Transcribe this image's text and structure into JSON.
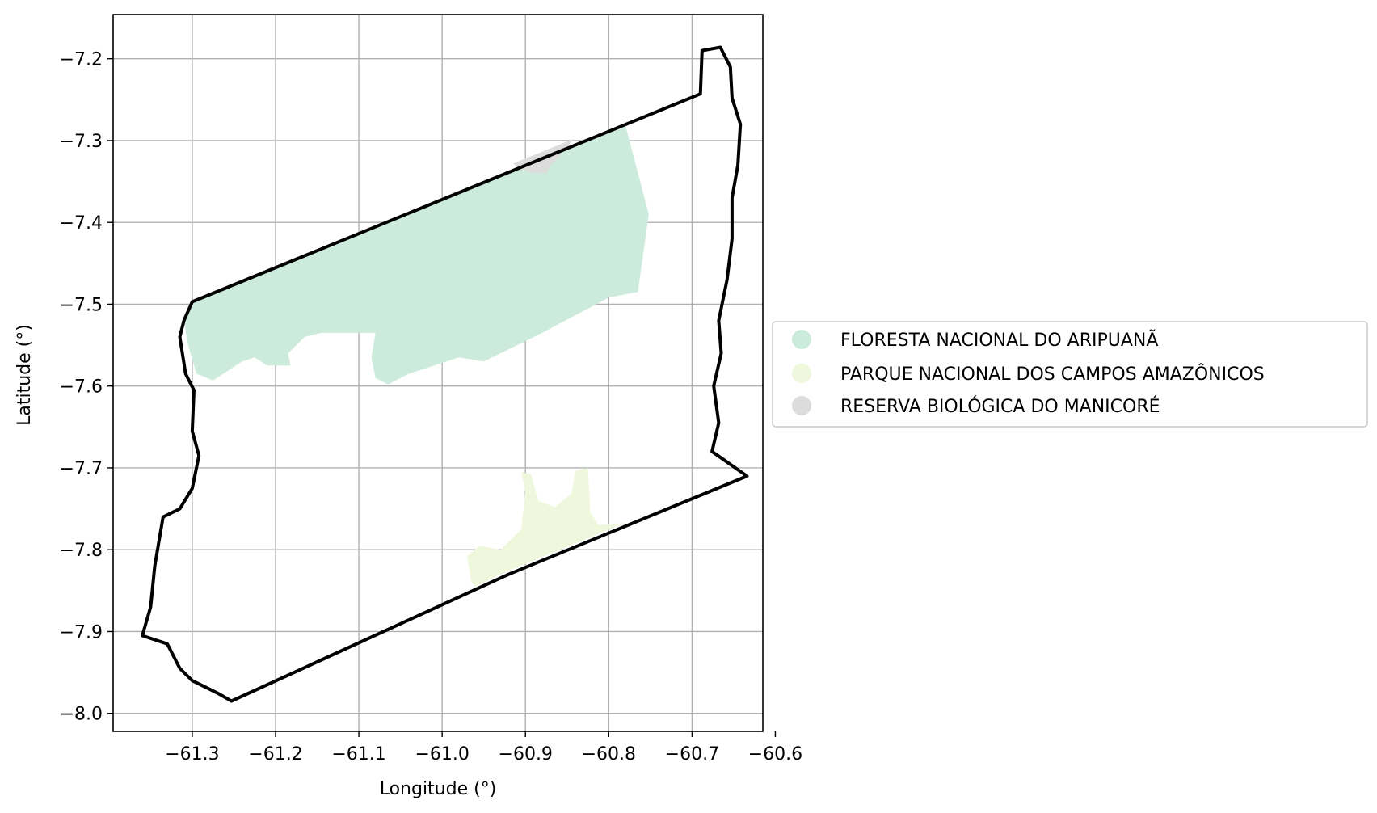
{
  "chart_data": {
    "type": "map",
    "xlabel": "Longitude (°)",
    "ylabel": "Latitude (°)",
    "xlim": [
      -61.395,
      -60.615
    ],
    "ylim": [
      -8.022,
      -7.146
    ],
    "xticks": [
      -61.3,
      -61.2,
      -61.1,
      -61.0,
      -60.9,
      -60.8,
      -60.7,
      -60.6
    ],
    "xtick_labels": [
      "−61.3",
      "−61.2",
      "−61.1",
      "−61.0",
      "−60.9",
      "−60.8",
      "−60.7",
      "−60.6"
    ],
    "yticks": [
      -7.2,
      -7.3,
      -7.4,
      -7.5,
      -7.6,
      -7.7,
      -7.8,
      -7.9,
      -8.0
    ],
    "ytick_labels": [
      "−7.2",
      "−7.3",
      "−7.4",
      "−7.5",
      "−7.6",
      "−7.7",
      "−7.8",
      "−7.9",
      "−8.0"
    ],
    "grid": true,
    "legend_position": "right",
    "boundary": {
      "stroke": "#000000",
      "coordinates": [
        [
          -61.3,
          -7.497
        ],
        [
          -60.69,
          -7.243
        ],
        [
          -60.688,
          -7.19
        ],
        [
          -60.666,
          -7.186
        ],
        [
          -60.654,
          -7.21
        ],
        [
          -60.652,
          -7.248
        ],
        [
          -60.642,
          -7.28
        ],
        [
          -60.645,
          -7.33
        ],
        [
          -60.652,
          -7.37
        ],
        [
          -60.652,
          -7.42
        ],
        [
          -60.658,
          -7.47
        ],
        [
          -60.668,
          -7.52
        ],
        [
          -60.665,
          -7.56
        ],
        [
          -60.674,
          -7.6
        ],
        [
          -60.668,
          -7.645
        ],
        [
          -60.676,
          -7.68
        ],
        [
          -60.634,
          -7.71
        ],
        [
          -60.92,
          -7.83
        ],
        [
          -61.253,
          -7.985
        ],
        [
          -61.27,
          -7.975
        ],
        [
          -61.3,
          -7.96
        ],
        [
          -61.315,
          -7.945
        ],
        [
          -61.33,
          -7.915
        ],
        [
          -61.36,
          -7.905
        ],
        [
          -61.35,
          -7.87
        ],
        [
          -61.345,
          -7.82
        ],
        [
          -61.335,
          -7.76
        ],
        [
          -61.315,
          -7.75
        ],
        [
          -61.3,
          -7.725
        ],
        [
          -61.292,
          -7.685
        ],
        [
          -61.3,
          -7.655
        ],
        [
          -61.298,
          -7.605
        ],
        [
          -61.308,
          -7.585
        ],
        [
          -61.315,
          -7.54
        ],
        [
          -61.31,
          -7.52
        ],
        [
          -61.3,
          -7.497
        ]
      ]
    },
    "series": [
      {
        "name": "FLORESTA NACIONAL DO ARIPUANÃ",
        "color": "#cdebdd",
        "polygon": [
          [
            -61.3,
            -7.497
          ],
          [
            -60.78,
            -7.281
          ],
          [
            -60.752,
            -7.39
          ],
          [
            -60.765,
            -7.485
          ],
          [
            -60.8,
            -7.492
          ],
          [
            -60.88,
            -7.535
          ],
          [
            -60.95,
            -7.57
          ],
          [
            -60.98,
            -7.565
          ],
          [
            -61.04,
            -7.585
          ],
          [
            -61.065,
            -7.598
          ],
          [
            -61.08,
            -7.59
          ],
          [
            -61.085,
            -7.565
          ],
          [
            -61.08,
            -7.535
          ],
          [
            -61.145,
            -7.535
          ],
          [
            -61.165,
            -7.54
          ],
          [
            -61.185,
            -7.56
          ],
          [
            -61.182,
            -7.575
          ],
          [
            -61.21,
            -7.575
          ],
          [
            -61.225,
            -7.565
          ],
          [
            -61.24,
            -7.57
          ],
          [
            -61.275,
            -7.593
          ],
          [
            -61.295,
            -7.585
          ],
          [
            -61.305,
            -7.55
          ],
          [
            -61.31,
            -7.52
          ]
        ]
      },
      {
        "name": "PARQUE NACIONAL DOS CAMPOS AMAZÔNICOS",
        "color": "#eff8dc",
        "polygon": [
          [
            -60.905,
            -7.705
          ],
          [
            -60.893,
            -7.708
          ],
          [
            -60.885,
            -7.74
          ],
          [
            -60.865,
            -7.748
          ],
          [
            -60.845,
            -7.732
          ],
          [
            -60.84,
            -7.704
          ],
          [
            -60.825,
            -7.7
          ],
          [
            -60.822,
            -7.755
          ],
          [
            -60.812,
            -7.77
          ],
          [
            -60.78,
            -7.767
          ],
          [
            -60.928,
            -7.829
          ],
          [
            -60.96,
            -7.845
          ],
          [
            -60.965,
            -7.84
          ],
          [
            -60.97,
            -7.808
          ],
          [
            -60.955,
            -7.795
          ],
          [
            -60.93,
            -7.8
          ],
          [
            -60.905,
            -7.775
          ],
          [
            -60.9,
            -7.73
          ]
        ]
      },
      {
        "name": "RESERVA BIOLÓGICA DO MANICORÉ",
        "color": "#dcdcdc",
        "polygon": [
          [
            -60.915,
            -7.328
          ],
          [
            -60.842,
            -7.298
          ],
          [
            -60.86,
            -7.32
          ],
          [
            -60.87,
            -7.33
          ],
          [
            -60.875,
            -7.34
          ],
          [
            -60.89,
            -7.34
          ],
          [
            -60.905,
            -7.335
          ]
        ]
      }
    ]
  }
}
